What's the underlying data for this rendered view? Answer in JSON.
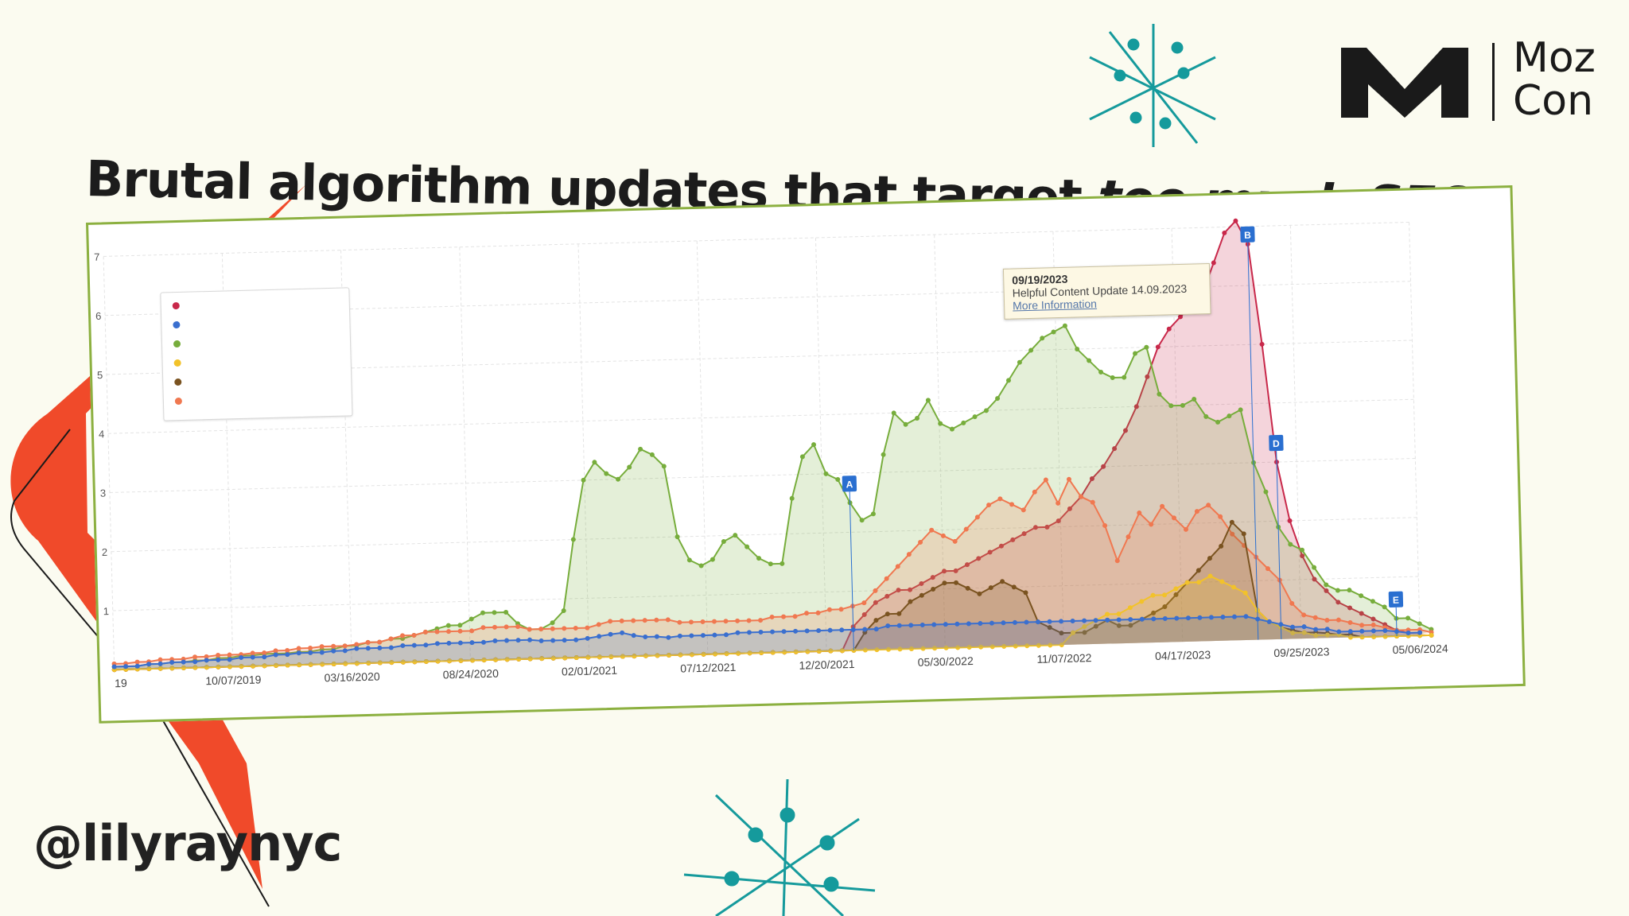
{
  "slide": {
    "title_main": "Brutal algorithm updates that target ",
    "title_emphasis": "too much SEO",
    "handle": "@lilyraynyc",
    "brand_line1": "Moz",
    "brand_line2": "Con"
  },
  "colors": {
    "background": "#fbfbf0",
    "accent_red": "#f04a2a",
    "accent_teal": "#159a9c",
    "frame_green": "#8cb040"
  },
  "tooltip": {
    "date": "09/19/2023",
    "text": "Helpful Content Update 14.09.2023",
    "link": "More Information"
  },
  "chart_data": {
    "type": "area",
    "ylim": [
      0,
      7
    ],
    "y_ticks": [
      "1",
      "2",
      "3",
      "4",
      "5",
      "6",
      "7"
    ],
    "x_tick_labels": [
      "19",
      "10/07/2019",
      "03/16/2020",
      "08/24/2020",
      "02/01/2021",
      "07/12/2021",
      "12/20/2021",
      "05/30/2022",
      "11/07/2022",
      "04/17/2023",
      "09/25/2023",
      "05/06/2024"
    ],
    "legend_placement": "top-left",
    "grid": true,
    "markers": [
      {
        "label": "A",
        "x_index": 64
      },
      {
        "label": "B",
        "x_index": 99
      },
      {
        "label": "D",
        "x_index": 101
      },
      {
        "label": "E",
        "x_index": 111
      }
    ],
    "series": [
      {
        "color": "#c8284a",
        "values": [
          0,
          0,
          0,
          0,
          0,
          0,
          0,
          0,
          0,
          0,
          0,
          0,
          0,
          0,
          0,
          0,
          0,
          0,
          0,
          0,
          0,
          0,
          0,
          0,
          0,
          0,
          0,
          0,
          0,
          0,
          0,
          0,
          0,
          0,
          0,
          0,
          0,
          0,
          0,
          0,
          0,
          0,
          0,
          0,
          0,
          0,
          0,
          0,
          0,
          0,
          0,
          0,
          0,
          0,
          0,
          0,
          0,
          0,
          0,
          0,
          0,
          0,
          0,
          0,
          0.4,
          0.6,
          0.8,
          0.9,
          1.0,
          1.0,
          1.1,
          1.2,
          1.3,
          1.3,
          1.4,
          1.5,
          1.6,
          1.7,
          1.8,
          1.9,
          2.0,
          2.0,
          2.1,
          2.3,
          2.5,
          2.8,
          3.0,
          3.3,
          3.6,
          4.0,
          4.5,
          5.0,
          5.3,
          5.5,
          5.7,
          5.9,
          6.4,
          6.9,
          7.1,
          6.7,
          5.0,
          3.0,
          2.0,
          1.4,
          1.0,
          0.8,
          0.6,
          0.5,
          0.4,
          0.3,
          0.2,
          0.1,
          0.05,
          0.05
        ]
      },
      {
        "color": "#3a6fcf",
        "values": [
          0.05,
          0.05,
          0.05,
          0.08,
          0.08,
          0.1,
          0.1,
          0.1,
          0.12,
          0.12,
          0.12,
          0.15,
          0.15,
          0.15,
          0.18,
          0.18,
          0.2,
          0.2,
          0.2,
          0.22,
          0.22,
          0.25,
          0.25,
          0.25,
          0.25,
          0.28,
          0.28,
          0.28,
          0.3,
          0.3,
          0.3,
          0.3,
          0.3,
          0.32,
          0.32,
          0.32,
          0.32,
          0.3,
          0.3,
          0.3,
          0.3,
          0.32,
          0.35,
          0.38,
          0.4,
          0.35,
          0.32,
          0.32,
          0.3,
          0.32,
          0.32,
          0.32,
          0.32,
          0.32,
          0.35,
          0.35,
          0.35,
          0.35,
          0.35,
          0.35,
          0.35,
          0.35,
          0.35,
          0.35,
          0.35,
          0.35,
          0.35,
          0.4,
          0.4,
          0.4,
          0.4,
          0.4,
          0.4,
          0.4,
          0.4,
          0.4,
          0.4,
          0.4,
          0.4,
          0.4,
          0.4,
          0.4,
          0.4,
          0.4,
          0.4,
          0.4,
          0.4,
          0.4,
          0.4,
          0.4,
          0.4,
          0.4,
          0.4,
          0.4,
          0.4,
          0.4,
          0.4,
          0.4,
          0.4,
          0.35,
          0.3,
          0.25,
          0.2,
          0.2,
          0.15,
          0.15,
          0.1,
          0.1,
          0.1,
          0.1,
          0.1,
          0.08,
          0.05,
          0.05
        ]
      },
      {
        "color": "#77ad3c",
        "values": [
          0.05,
          0.05,
          0.05,
          0.08,
          0.08,
          0.1,
          0.1,
          0.12,
          0.12,
          0.15,
          0.15,
          0.18,
          0.18,
          0.2,
          0.2,
          0.2,
          0.22,
          0.22,
          0.25,
          0.25,
          0.3,
          0.3,
          0.35,
          0.35,
          0.4,
          0.4,
          0.45,
          0.5,
          0.55,
          0.6,
          0.6,
          0.7,
          0.8,
          0.8,
          0.8,
          0.6,
          0.5,
          0.5,
          0.6,
          0.8,
          2.0,
          3.0,
          3.3,
          3.1,
          3.0,
          3.2,
          3.5,
          3.4,
          3.2,
          2.0,
          1.6,
          1.5,
          1.6,
          1.9,
          2.0,
          1.8,
          1.6,
          1.5,
          1.5,
          2.6,
          3.3,
          3.5,
          3.0,
          2.9,
          2.5,
          2.2,
          2.3,
          3.3,
          4.0,
          3.8,
          3.9,
          4.2,
          3.8,
          3.7,
          3.8,
          3.9,
          4.0,
          4.2,
          4.5,
          4.8,
          5.0,
          5.2,
          5.3,
          5.4,
          5.0,
          4.8,
          4.6,
          4.5,
          4.5,
          4.9,
          5.0,
          4.2,
          4.0,
          4.0,
          4.1,
          3.8,
          3.7,
          3.8,
          3.9,
          3.0,
          2.5,
          1.9,
          1.6,
          1.5,
          1.2,
          0.9,
          0.8,
          0.8,
          0.7,
          0.6,
          0.5,
          0.3,
          0.3,
          0.2,
          0.1
        ]
      },
      {
        "color": "#f2c22a",
        "values": [
          0,
          0,
          0,
          0,
          0,
          0,
          0,
          0,
          0,
          0,
          0,
          0,
          0,
          0,
          0,
          0,
          0,
          0,
          0,
          0,
          0,
          0,
          0,
          0,
          0,
          0,
          0,
          0,
          0,
          0,
          0,
          0,
          0,
          0,
          0,
          0,
          0,
          0,
          0,
          0,
          0,
          0,
          0,
          0,
          0,
          0,
          0,
          0,
          0,
          0,
          0,
          0,
          0,
          0,
          0,
          0,
          0,
          0,
          0,
          0,
          0,
          0,
          0,
          0,
          0,
          0,
          0,
          0,
          0,
          0,
          0,
          0,
          0,
          0,
          0,
          0,
          0,
          0,
          0,
          0,
          0,
          0,
          0,
          0.2,
          0.3,
          0.4,
          0.5,
          0.5,
          0.6,
          0.7,
          0.8,
          0.8,
          0.9,
          1.0,
          1.0,
          1.1,
          1.0,
          0.9,
          0.8,
          0.5,
          0.3,
          0.2,
          0.1,
          0.1,
          0.05,
          0.05,
          0.05,
          0,
          0,
          0,
          0,
          0,
          0,
          0,
          0
        ]
      },
      {
        "color": "#7a5320",
        "values": [
          0,
          0,
          0,
          0,
          0,
          0,
          0,
          0,
          0,
          0,
          0,
          0,
          0,
          0,
          0,
          0,
          0,
          0,
          0,
          0,
          0,
          0,
          0,
          0,
          0,
          0,
          0,
          0,
          0,
          0,
          0,
          0,
          0,
          0,
          0,
          0,
          0,
          0,
          0,
          0,
          0,
          0,
          0,
          0,
          0,
          0,
          0,
          0,
          0,
          0,
          0,
          0,
          0,
          0,
          0,
          0,
          0,
          0,
          0,
          0,
          0,
          0,
          0,
          0,
          0,
          0.3,
          0.5,
          0.6,
          0.6,
          0.8,
          0.9,
          1.0,
          1.1,
          1.1,
          1.0,
          0.9,
          1.0,
          1.1,
          1.0,
          0.9,
          0.4,
          0.3,
          0.2,
          0.2,
          0.2,
          0.3,
          0.4,
          0.3,
          0.3,
          0.4,
          0.5,
          0.6,
          0.8,
          1.0,
          1.2,
          1.4,
          1.6,
          2.0,
          1.8,
          0.5,
          0.3,
          0.2,
          0.15,
          0.1,
          0.1,
          0.08,
          0.05,
          0.05,
          0,
          0,
          0,
          0,
          0,
          0,
          0
        ]
      },
      {
        "color": "#f07850",
        "values": [
          0.1,
          0.1,
          0.12,
          0.12,
          0.15,
          0.15,
          0.15,
          0.18,
          0.18,
          0.2,
          0.2,
          0.2,
          0.22,
          0.22,
          0.25,
          0.25,
          0.28,
          0.28,
          0.3,
          0.3,
          0.3,
          0.32,
          0.35,
          0.35,
          0.4,
          0.45,
          0.45,
          0.5,
          0.5,
          0.5,
          0.5,
          0.5,
          0.55,
          0.55,
          0.55,
          0.55,
          0.5,
          0.5,
          0.5,
          0.5,
          0.5,
          0.5,
          0.55,
          0.6,
          0.6,
          0.6,
          0.6,
          0.6,
          0.6,
          0.55,
          0.55,
          0.55,
          0.55,
          0.55,
          0.55,
          0.55,
          0.55,
          0.6,
          0.6,
          0.6,
          0.65,
          0.65,
          0.7,
          0.7,
          0.75,
          0.8,
          1.0,
          1.2,
          1.4,
          1.6,
          1.8,
          2.0,
          1.9,
          1.8,
          2.0,
          2.2,
          2.4,
          2.5,
          2.4,
          2.3,
          2.6,
          2.8,
          2.4,
          2.8,
          2.5,
          2.4,
          2.0,
          1.4,
          1.8,
          2.2,
          2.0,
          2.3,
          2.1,
          1.9,
          2.2,
          2.3,
          2.1,
          1.8,
          1.6,
          1.4,
          1.2,
          1.0,
          0.6,
          0.4,
          0.35,
          0.3,
          0.3,
          0.25,
          0.2,
          0.2,
          0.15,
          0.1,
          0.1,
          0.1,
          0.05
        ]
      }
    ]
  }
}
